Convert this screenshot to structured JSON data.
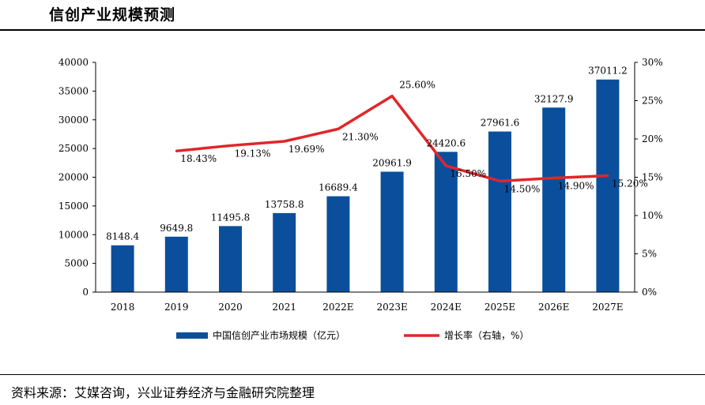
{
  "page": {
    "title": "信创产业规模预测",
    "source": "资料来源：艾媒咨询，兴业证券经济与金融研究院整理"
  },
  "colors": {
    "bar": "#0b4f9c",
    "line": "#e0262b",
    "axis": "#000000"
  },
  "chart_data": {
    "type": "bar+line",
    "title": "信创产业规模预测",
    "categories": [
      "2018",
      "2019",
      "2020",
      "2021",
      "2022E",
      "2023E",
      "2024E",
      "2025E",
      "2026E",
      "2027E"
    ],
    "series": [
      {
        "name": "中国信创产业市场规模（亿元）",
        "type": "bar",
        "axis": "left",
        "values": [
          8148.4,
          9649.8,
          11495.8,
          13758.8,
          16689.4,
          20961.9,
          24420.6,
          27961.6,
          32127.9,
          37011.2
        ],
        "labels": [
          "8148.4",
          "9649.8",
          "11495.8",
          "13758.8",
          "16689.4",
          "20961.9",
          "24420.6",
          "27961.6",
          "32127.9",
          "37011.2"
        ]
      },
      {
        "name": "增长率（右轴，%）",
        "type": "line",
        "axis": "right",
        "values": [
          null,
          18.43,
          19.13,
          19.69,
          21.3,
          25.6,
          16.5,
          14.5,
          14.9,
          15.2
        ],
        "labels": [
          null,
          "18.43%",
          "19.13%",
          "19.69%",
          "21.30%",
          "25.60%",
          "16.50%",
          "14.50%",
          "14.90%",
          "15.20%"
        ]
      }
    ],
    "left_axis": {
      "min": 0,
      "max": 40000,
      "step": 5000,
      "ticks": [
        "0",
        "5000",
        "10000",
        "15000",
        "20000",
        "25000",
        "30000",
        "35000",
        "40000"
      ]
    },
    "right_axis": {
      "min": 0,
      "max": 30,
      "step": 5,
      "ticks": [
        "0%",
        "5%",
        "10%",
        "15%",
        "20%",
        "25%",
        "30%"
      ]
    },
    "legend_position": "bottom"
  }
}
